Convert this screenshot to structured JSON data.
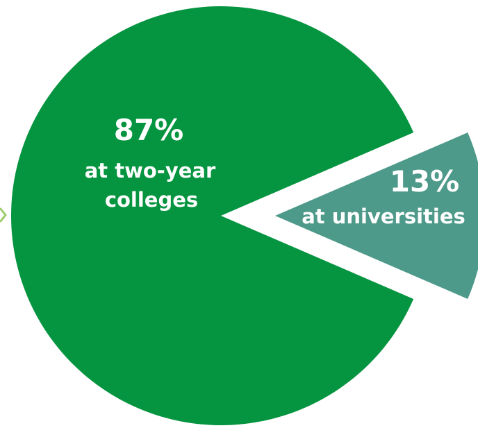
{
  "chart_data": {
    "type": "pie",
    "title": "",
    "slices": [
      {
        "value": 87,
        "value_label": "87%",
        "label_lines": [
          "at two-year",
          "colleges"
        ],
        "color": "#05943f",
        "exploded": false
      },
      {
        "value": 13,
        "value_label": "13%",
        "label_lines": [
          "at universities"
        ],
        "color": "#4e9a8a",
        "exploded": true
      }
    ],
    "legend": "none",
    "accent_colors": {
      "left_arrow": "#9ccc6a"
    }
  }
}
